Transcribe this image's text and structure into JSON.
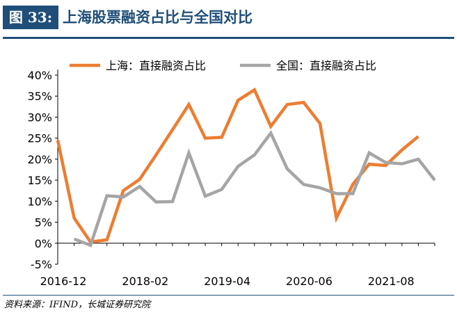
{
  "figure": {
    "label": "图 33:",
    "title": "上海股票融资占比与全国对比",
    "source": "资料来源：IFIND，长城证券研究院"
  },
  "chart_data": {
    "type": "line",
    "title": "",
    "xlabel": "",
    "ylabel": "",
    "x_tick_labels": [
      "2016-12",
      "2018-02",
      "2019-04",
      "2020-06",
      "2021-08"
    ],
    "x_tick_positions": [
      0,
      5,
      10,
      15,
      20
    ],
    "y_tick_labels": [
      "40%",
      "35%",
      "30%",
      "25%",
      "20%",
      "15%",
      "10%",
      "5%",
      "0%",
      "-5%"
    ],
    "ylim": [
      -5,
      40
    ],
    "y_unit": "%",
    "grid": false,
    "legend_position": "top",
    "series": [
      {
        "name": "上海：直接融资占比",
        "color": "#ed7d31",
        "x": [
          0,
          1,
          2,
          3,
          4,
          5,
          6,
          7,
          8,
          9,
          10,
          11,
          12,
          13,
          14,
          15,
          16,
          17,
          18,
          19,
          20,
          21,
          22,
          23
        ],
        "values": [
          24.5,
          6,
          0.3,
          0.8,
          12.5,
          15.2,
          21,
          27,
          33,
          25,
          25.2,
          34,
          36.5,
          27.8,
          33,
          33.5,
          28.5,
          6,
          14,
          18.8,
          18.5,
          22.2,
          25.4,
          null
        ]
      },
      {
        "name": "全国：直接融资占比",
        "color": "#a5a5a5",
        "x": [
          0,
          1,
          2,
          3,
          4,
          5,
          6,
          7,
          8,
          9,
          10,
          11,
          12,
          13,
          14,
          15,
          16,
          17,
          18,
          19,
          20,
          21,
          22,
          23
        ],
        "values": [
          null,
          1,
          -0.5,
          11.3,
          11,
          13.5,
          9.8,
          9.9,
          21.5,
          11.2,
          12.8,
          18.3,
          21,
          26.2,
          17.7,
          14,
          13.2,
          11.8,
          11.8,
          21.5,
          19.2,
          18.9,
          20,
          15
        ]
      }
    ]
  }
}
